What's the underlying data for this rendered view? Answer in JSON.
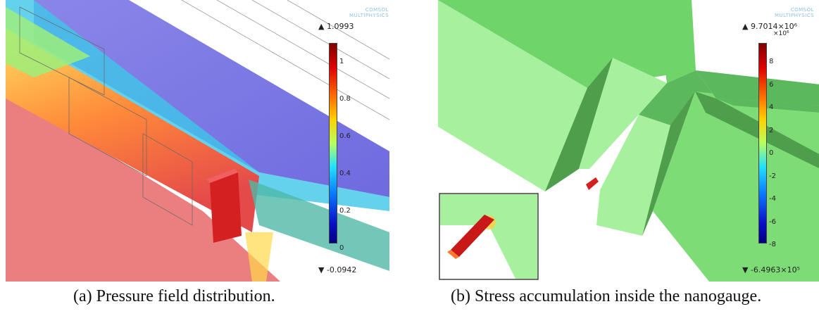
{
  "panel_a": {
    "logo_line1": "COMSOL",
    "logo_line2": "MULTIPHYSICS",
    "max_label": "▲ 1.0993",
    "min_label": "▼ -0.0942",
    "ticks": [
      "1",
      "0.8",
      "0.6",
      "0.4",
      "0.2",
      "0"
    ],
    "caption": "(a) Pressure field distribution."
  },
  "panel_b": {
    "logo_line1": "COMSOL",
    "logo_line2": "MULTIPHYSICS",
    "max_label": "▲ 9.7014×10⁶",
    "multiplier": "×10⁶",
    "min_label": "▼ -6.4963×10⁵",
    "ticks": [
      "8",
      "6",
      "4",
      "2",
      "0",
      "-2",
      "-4",
      "-6",
      "-8"
    ],
    "caption": "(b) Stress accumulation inside the nanogauge."
  },
  "colors": {
    "green_face": "#a6f09e",
    "green_dark": "#5cb85c",
    "green_mid": "#7ddc75"
  }
}
